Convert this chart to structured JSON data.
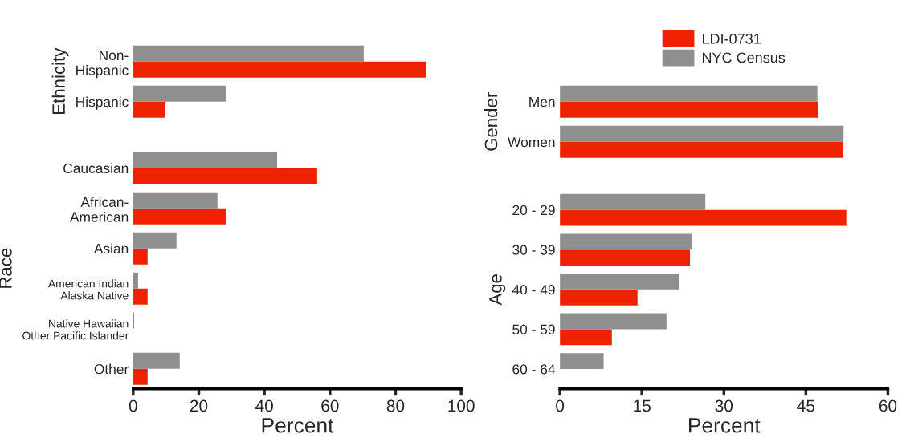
{
  "chart_data": [
    {
      "type": "bar",
      "orientation": "horizontal",
      "ylabel": "Ethnicity",
      "categories": [
        "Non-\nHispanic",
        "Hispanic"
      ],
      "series": [
        {
          "color": "#ee2200",
          "values": [
            89.2,
            9.6
          ]
        },
        {
          "color": "#8f8f8f",
          "values": [
            70.3,
            28.2
          ]
        }
      ],
      "xlim": [
        0,
        100
      ],
      "xticks": [
        0,
        20,
        40,
        60,
        80,
        100
      ],
      "tick_labels": "y"
    },
    {
      "type": "bar",
      "orientation": "horizontal",
      "ylabel": "Race",
      "xlabel": "Percent",
      "categories": [
        "Caucasian",
        "African-\nAmerican",
        "Asian",
        "American Indian\nAlaska Native",
        "Native Hawaiian\nOther Pacific Islander",
        "Other"
      ],
      "series": [
        {
          "color": "#ee2200",
          "values": [
            56.1,
            28.2,
            4.4,
            4.4,
            null,
            4.4
          ]
        },
        {
          "color": "#8f8f8f",
          "values": [
            43.9,
            25.7,
            13.2,
            1.5,
            0.3,
            14.2
          ]
        }
      ],
      "xlim": [
        0,
        100
      ],
      "xticks": [
        0,
        20,
        40,
        60,
        80,
        100
      ]
    },
    {
      "type": "bar",
      "orientation": "horizontal",
      "ylabel": "Gender",
      "categories": [
        "Men",
        "Women"
      ],
      "series": [
        {
          "name": "LDI-0731",
          "color": "#ee2200",
          "values": [
            47.3,
            51.8
          ]
        },
        {
          "name": "NYC Census",
          "color": "#8f8f8f",
          "values": [
            47.1,
            51.9
          ]
        }
      ],
      "xlim": [
        0,
        60
      ],
      "xticks": [
        0,
        15,
        30,
        45,
        60
      ],
      "tick_labels": "y",
      "legend": "top"
    },
    {
      "type": "bar",
      "orientation": "horizontal",
      "ylabel": "Age",
      "xlabel": "Percent",
      "categories": [
        "20 - 29",
        "30 - 39",
        "40 - 49",
        "50 - 59",
        "60 - 64"
      ],
      "series": [
        {
          "color": "#ee2200",
          "values": [
            52.4,
            23.8,
            14.2,
            9.5,
            null
          ]
        },
        {
          "color": "#8f8f8f",
          "values": [
            26.6,
            24.1,
            21.8,
            19.5,
            8.0
          ]
        }
      ],
      "xlim": [
        0,
        60
      ],
      "xticks": [
        0,
        15,
        30,
        45,
        60
      ]
    }
  ]
}
